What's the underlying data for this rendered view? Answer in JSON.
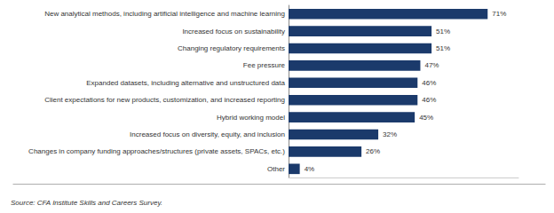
{
  "chart_data": {
    "type": "bar",
    "orientation": "horizontal",
    "categories": [
      "Other",
      "Changes in company funding approaches/structures (private assets, SPACs, etc.)",
      "Increased focus on diversity, equity, and inclusion",
      "Hybrid working model",
      "Client expectations for new products, customization, and increased reporting",
      "Expanded datasets, including alternative and unstructured data",
      "Fee pressure",
      "Changing regulatory requirements",
      "Increased focus on sustainability",
      "New analytical methods, including artificial intelligence and machine learning"
    ],
    "values": [
      4,
      26,
      32,
      45,
      46,
      46,
      47,
      51,
      51,
      71
    ],
    "value_labels": [
      "4%",
      "26%",
      "32%",
      "45%",
      "46%",
      "46%",
      "47%",
      "51%",
      "51%",
      "71%"
    ],
    "data_labels": true,
    "color": "#1B3A6B",
    "xlim": [
      0,
      82
    ],
    "tick_labels": "y",
    "grid": false,
    "annotations": [
      "Source: CFA Institute Skills and Careers Survey."
    ]
  }
}
